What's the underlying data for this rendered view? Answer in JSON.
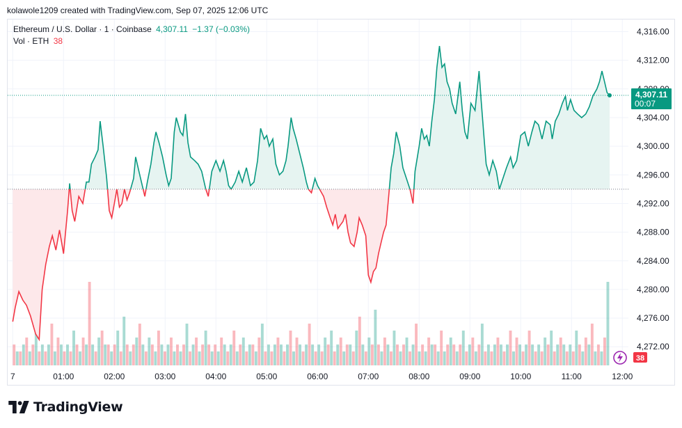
{
  "attribution": "kolawole1209 created with TradingView.com, Sep 07, 2025 12:06 UTC",
  "legend": {
    "symbol": "Ethereum / U.S. Dollar · 1 · Coinbase",
    "last": "4,307.11",
    "change": "−1.37 (−0.03%)",
    "vol_label": "Vol · ETH",
    "vol_value": "38"
  },
  "price_badge": {
    "price": "4,307.11",
    "countdown": "00:07"
  },
  "volume_badge": "38",
  "brand": "TradingView",
  "colors": {
    "up": "#089981",
    "down": "#f23645",
    "up_fill": "#e6f4f1",
    "down_fill": "#fde8ea",
    "grid": "#f0f3fa"
  },
  "chart_data": {
    "type": "area",
    "subtype": "baseline-line",
    "xlabel": "",
    "ylabel": "",
    "x_ticks": [
      "7",
      "01:00",
      "02:00",
      "03:00",
      "04:00",
      "05:00",
      "06:00",
      "07:00",
      "08:00",
      "09:00",
      "10:00",
      "11:00",
      "12:00"
    ],
    "y_ticks": [
      "4,272.00",
      "4,276.00",
      "4,280.00",
      "4,284.00",
      "4,288.00",
      "4,292.00",
      "4,296.00",
      "4,300.00",
      "4,304.00",
      "4,308.00",
      "4,312.00",
      "4,316.00"
    ],
    "ylim": [
      4269.4,
      4317.7
    ],
    "x_range_hours": [
      -0.1,
      12.12
    ],
    "baseline": 4294.0,
    "last_price": 4307.11,
    "grid": true,
    "series": [
      {
        "values": [
          [
            0.0,
            4275.5
          ],
          [
            0.05,
            4277.5
          ],
          [
            0.12,
            4279.7
          ],
          [
            0.2,
            4278.5
          ],
          [
            0.27,
            4277.8
          ],
          [
            0.35,
            4276.3
          ],
          [
            0.45,
            4273.8
          ],
          [
            0.52,
            4273.0
          ],
          [
            0.58,
            4280.0
          ],
          [
            0.65,
            4283.5
          ],
          [
            0.72,
            4286.0
          ],
          [
            0.78,
            4287.5
          ],
          [
            0.85,
            4285.5
          ],
          [
            0.92,
            4288.3
          ],
          [
            1.0,
            4285.0
          ],
          [
            1.08,
            4291.0
          ],
          [
            1.12,
            4294.8
          ],
          [
            1.17,
            4291.0
          ],
          [
            1.22,
            4289.5
          ],
          [
            1.3,
            4293.0
          ],
          [
            1.38,
            4292.0
          ],
          [
            1.45,
            4295.0
          ],
          [
            1.5,
            4295.0
          ],
          [
            1.55,
            4297.5
          ],
          [
            1.62,
            4298.5
          ],
          [
            1.68,
            4299.5
          ],
          [
            1.72,
            4303.5
          ],
          [
            1.78,
            4300.0
          ],
          [
            1.85,
            4295.5
          ],
          [
            1.9,
            4291.0
          ],
          [
            1.95,
            4290.0
          ],
          [
            2.0,
            4292.0
          ],
          [
            2.05,
            4294.0
          ],
          [
            2.1,
            4291.5
          ],
          [
            2.15,
            4292.0
          ],
          [
            2.2,
            4294.0
          ],
          [
            2.25,
            4292.5
          ],
          [
            2.3,
            4293.5
          ],
          [
            2.38,
            4295.5
          ],
          [
            2.42,
            4298.5
          ],
          [
            2.5,
            4296.0
          ],
          [
            2.6,
            4293.0
          ],
          [
            2.65,
            4295.0
          ],
          [
            2.72,
            4297.5
          ],
          [
            2.78,
            4300.5
          ],
          [
            2.82,
            4302.0
          ],
          [
            2.88,
            4300.5
          ],
          [
            2.95,
            4298.5
          ],
          [
            3.02,
            4296.0
          ],
          [
            3.07,
            4294.5
          ],
          [
            3.12,
            4295.5
          ],
          [
            3.18,
            4302.0
          ],
          [
            3.22,
            4304.0
          ],
          [
            3.3,
            4302.0
          ],
          [
            3.35,
            4301.5
          ],
          [
            3.4,
            4304.5
          ],
          [
            3.45,
            4300.5
          ],
          [
            3.5,
            4298.5
          ],
          [
            3.58,
            4298.0
          ],
          [
            3.65,
            4297.5
          ],
          [
            3.72,
            4296.5
          ],
          [
            3.8,
            4294.0
          ],
          [
            3.85,
            4293.0
          ],
          [
            3.92,
            4296.5
          ],
          [
            4.0,
            4298.0
          ],
          [
            4.08,
            4296.5
          ],
          [
            4.15,
            4298.0
          ],
          [
            4.2,
            4296.5
          ],
          [
            4.25,
            4294.5
          ],
          [
            4.3,
            4294.0
          ],
          [
            4.38,
            4295.0
          ],
          [
            4.45,
            4296.5
          ],
          [
            4.52,
            4295.0
          ],
          [
            4.6,
            4297.0
          ],
          [
            4.68,
            4294.5
          ],
          [
            4.75,
            4295.0
          ],
          [
            4.82,
            4298.0
          ],
          [
            4.88,
            4302.5
          ],
          [
            4.95,
            4301.0
          ],
          [
            5.0,
            4301.5
          ],
          [
            5.05,
            4300.0
          ],
          [
            5.12,
            4301.0
          ],
          [
            5.18,
            4297.5
          ],
          [
            5.25,
            4296.0
          ],
          [
            5.32,
            4296.5
          ],
          [
            5.38,
            4298.0
          ],
          [
            5.42,
            4300.0
          ],
          [
            5.48,
            4304.0
          ],
          [
            5.52,
            4302.5
          ],
          [
            5.58,
            4301.0
          ],
          [
            5.65,
            4299.0
          ],
          [
            5.72,
            4297.0
          ],
          [
            5.78,
            4295.0
          ],
          [
            5.82,
            4294.0
          ],
          [
            5.88,
            4293.5
          ],
          [
            5.95,
            4295.5
          ],
          [
            6.0,
            4294.5
          ],
          [
            6.08,
            4293.5
          ],
          [
            6.12,
            4293.0
          ],
          [
            6.18,
            4291.5
          ],
          [
            6.25,
            4290.0
          ],
          [
            6.3,
            4289.0
          ],
          [
            6.35,
            4290.5
          ],
          [
            6.4,
            4288.5
          ],
          [
            6.45,
            4289.0
          ],
          [
            6.5,
            4289.5
          ],
          [
            6.55,
            4290.5
          ],
          [
            6.6,
            4288.0
          ],
          [
            6.65,
            4286.5
          ],
          [
            6.72,
            4286.0
          ],
          [
            6.78,
            4288.0
          ],
          [
            6.82,
            4290.0
          ],
          [
            6.88,
            4289.0
          ],
          [
            6.95,
            4287.5
          ],
          [
            7.0,
            4282.0
          ],
          [
            7.05,
            4281.0
          ],
          [
            7.1,
            4282.5
          ],
          [
            7.15,
            4283.0
          ],
          [
            7.2,
            4285.0
          ],
          [
            7.25,
            4286.5
          ],
          [
            7.3,
            4288.0
          ],
          [
            7.35,
            4289.0
          ],
          [
            7.4,
            4293.0
          ],
          [
            7.45,
            4297.0
          ],
          [
            7.5,
            4299.0
          ],
          [
            7.55,
            4302.0
          ],
          [
            7.62,
            4300.0
          ],
          [
            7.68,
            4297.0
          ],
          [
            7.75,
            4295.5
          ],
          [
            7.82,
            4294.0
          ],
          [
            7.88,
            4292.0
          ],
          [
            7.92,
            4296.5
          ],
          [
            8.0,
            4300.0
          ],
          [
            8.05,
            4302.5
          ],
          [
            8.1,
            4301.0
          ],
          [
            8.15,
            4301.5
          ],
          [
            8.2,
            4300.0
          ],
          [
            8.25,
            4303.5
          ],
          [
            8.3,
            4306.5
          ],
          [
            8.35,
            4311.0
          ],
          [
            8.4,
            4314.0
          ],
          [
            8.45,
            4311.0
          ],
          [
            8.5,
            4311.5
          ],
          [
            8.55,
            4309.0
          ],
          [
            8.6,
            4308.0
          ],
          [
            8.65,
            4306.0
          ],
          [
            8.72,
            4304.5
          ],
          [
            8.8,
            4309.0
          ],
          [
            8.85,
            4305.0
          ],
          [
            8.9,
            4302.0
          ],
          [
            8.95,
            4301.0
          ],
          [
            9.02,
            4306.0
          ],
          [
            9.1,
            4305.0
          ],
          [
            9.18,
            4310.5
          ],
          [
            9.22,
            4306.5
          ],
          [
            9.28,
            4301.0
          ],
          [
            9.32,
            4297.5
          ],
          [
            9.38,
            4296.0
          ],
          [
            9.45,
            4298.0
          ],
          [
            9.52,
            4296.5
          ],
          [
            9.58,
            4294.0
          ],
          [
            9.65,
            4295.5
          ],
          [
            9.72,
            4297.0
          ],
          [
            9.8,
            4298.5
          ],
          [
            9.85,
            4297.0
          ],
          [
            9.92,
            4298.0
          ],
          [
            10.0,
            4301.5
          ],
          [
            10.08,
            4302.0
          ],
          [
            10.15,
            4300.0
          ],
          [
            10.22,
            4302.0
          ],
          [
            10.28,
            4303.5
          ],
          [
            10.35,
            4303.0
          ],
          [
            10.42,
            4301.0
          ],
          [
            10.5,
            4303.5
          ],
          [
            10.58,
            4303.0
          ],
          [
            10.62,
            4301.0
          ],
          [
            10.68,
            4303.5
          ],
          [
            10.75,
            4304.5
          ],
          [
            10.82,
            4306.0
          ],
          [
            10.88,
            4307.0
          ],
          [
            10.92,
            4305.0
          ],
          [
            10.98,
            4306.5
          ],
          [
            11.05,
            4305.0
          ],
          [
            11.12,
            4304.5
          ],
          [
            11.2,
            4304.0
          ],
          [
            11.28,
            4304.5
          ],
          [
            11.35,
            4305.5
          ],
          [
            11.42,
            4307.0
          ],
          [
            11.5,
            4308.0
          ],
          [
            11.55,
            4309.0
          ],
          [
            11.6,
            4310.5
          ],
          [
            11.65,
            4309.0
          ],
          [
            11.7,
            4307.5
          ],
          [
            11.75,
            4307.11
          ]
        ]
      }
    ],
    "volume": {
      "values": [
        3,
        2,
        2,
        3,
        4,
        2,
        3,
        5,
        2,
        3,
        2,
        3,
        6,
        2,
        4,
        3,
        2,
        3,
        2,
        5,
        3,
        2,
        4,
        3,
        12,
        3,
        2,
        4,
        5,
        3,
        3,
        2,
        3,
        5,
        2,
        7,
        3,
        2,
        3,
        4,
        6,
        3,
        2,
        4,
        3,
        2,
        5,
        3,
        2,
        3,
        4,
        2,
        3,
        2,
        3,
        6,
        2,
        3,
        4,
        2,
        3,
        5,
        3,
        2,
        3,
        2,
        4,
        3,
        2,
        3,
        5,
        2,
        3,
        4,
        2,
        3,
        3,
        2,
        4,
        6,
        2,
        3,
        2,
        3,
        4,
        3,
        2,
        3,
        5,
        2,
        4,
        3,
        2,
        3,
        6,
        3,
        2,
        3,
        2,
        4,
        3,
        5,
        2,
        3,
        4,
        2,
        3,
        3,
        2,
        5,
        7,
        3,
        2,
        4,
        3,
        8,
        3,
        2,
        4,
        3,
        2,
        5,
        3,
        2,
        3,
        4,
        2,
        3,
        6,
        2,
        3,
        2,
        4,
        3,
        3,
        2,
        5,
        2,
        3,
        4,
        3,
        2,
        3,
        5,
        2,
        3,
        4,
        2,
        3,
        6,
        2,
        3,
        2,
        3,
        4,
        3,
        2,
        3,
        5,
        2,
        4,
        3,
        2,
        3,
        5,
        3,
        2,
        3,
        2,
        4,
        3,
        5,
        2,
        3,
        4,
        3,
        2,
        3,
        2,
        5,
        3,
        2,
        4,
        3,
        6,
        2,
        3,
        2,
        4,
        12
      ]
    }
  }
}
